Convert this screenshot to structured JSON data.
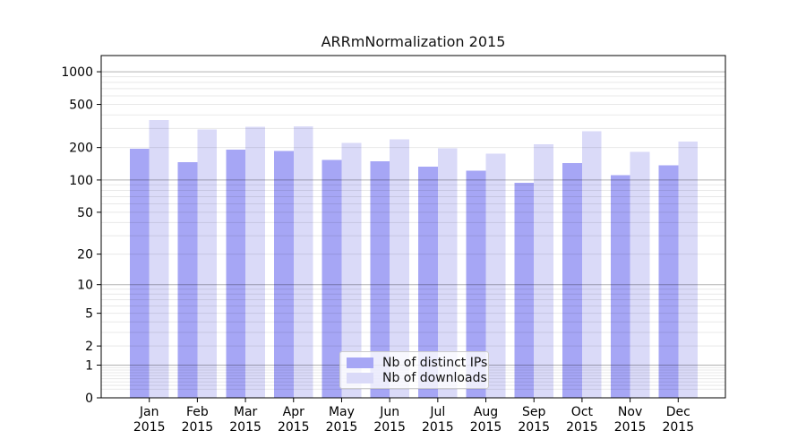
{
  "chart_data": {
    "type": "bar",
    "title": "ARRmNormalization 2015",
    "x_tick_labels": [
      "Jan\n2015",
      "Feb\n2015",
      "Mar\n2015",
      "Apr\n2015",
      "May\n2015",
      "Jun\n2015",
      "Jul\n2015",
      "Aug\n2015",
      "Sep\n2015",
      "Oct\n2015",
      "Nov\n2015",
      "Dec\n2015"
    ],
    "series": [
      {
        "name": "Nb of distinct IPs",
        "color": "#a6a6f5",
        "values": [
          195,
          147,
          192,
          185,
          154,
          149,
          133,
          122,
          94,
          144,
          111,
          137
        ]
      },
      {
        "name": "Nb of downloads",
        "color": "#dadaf8",
        "values": [
          360,
          295,
          310,
          313,
          221,
          237,
          196,
          175,
          215,
          282,
          183,
          228
        ]
      }
    ],
    "y_ticks": [
      1000,
      500,
      200,
      100,
      50,
      20,
      10,
      5,
      2,
      1,
      0
    ],
    "y_scale": "log1p",
    "ylim": [
      0,
      1410
    ],
    "grid": {
      "major_values": [
        1,
        10,
        100,
        1000
      ],
      "major_color": "rgba(0,0,0,0.30)",
      "minor_color": "rgba(0,0,0,0.09)"
    },
    "legend_position": "lower center",
    "axis_color": "#000000"
  }
}
